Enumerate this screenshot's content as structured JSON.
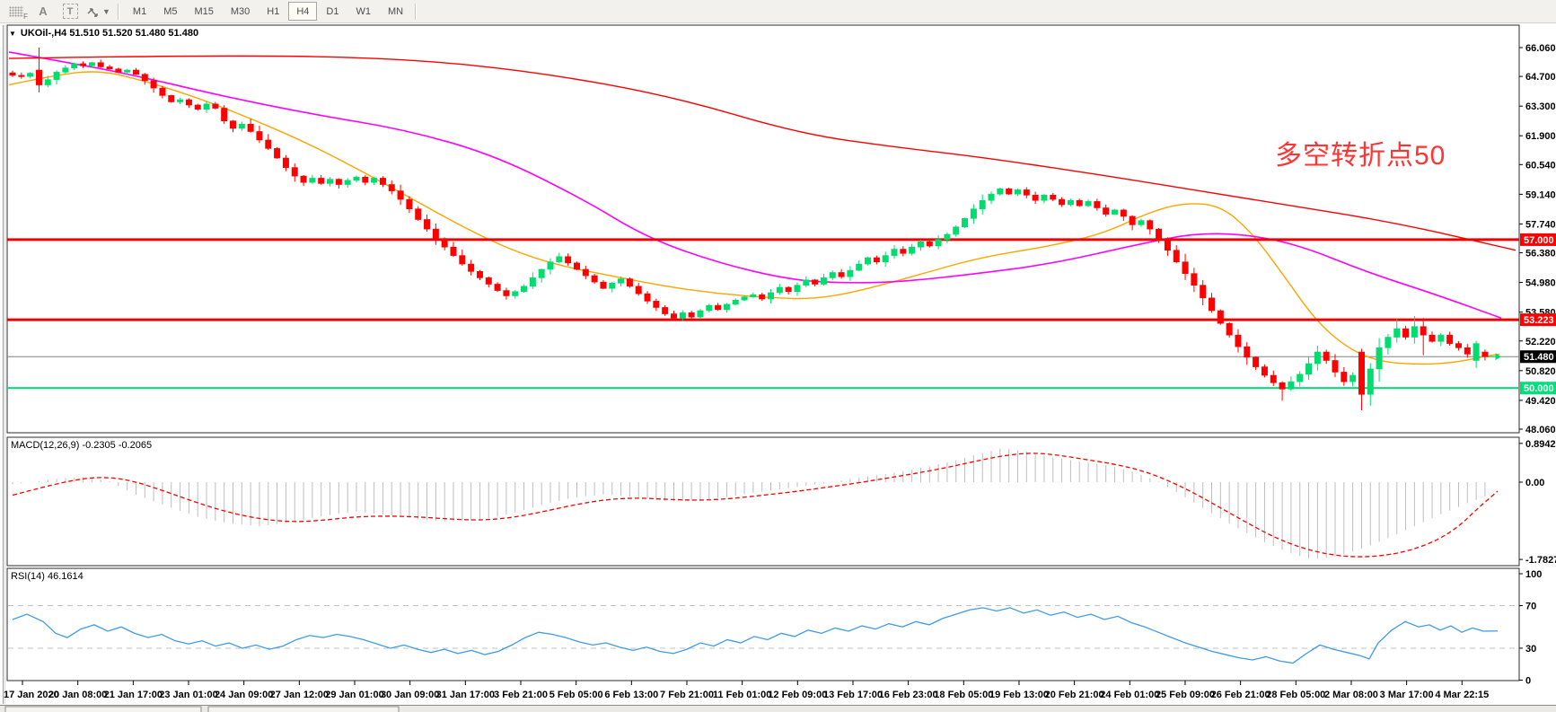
{
  "toolbar": {
    "icon_letters": {
      "f": "F",
      "a": "A",
      "t": "T"
    },
    "dropdown_caret": "▼",
    "timeframes": [
      "M1",
      "M5",
      "M15",
      "M30",
      "H1",
      "H4",
      "D1",
      "W1",
      "MN"
    ],
    "active_timeframe": "H4"
  },
  "chart": {
    "title": "UKOil-,H4  51.510 51.520 51.480 51.480",
    "annotation": "多空转折点50",
    "annotation_color": "#ff3535",
    "price_ticks": [
      66.06,
      64.7,
      63.3,
      61.9,
      60.54,
      59.14,
      57.74,
      56.38,
      54.98,
      53.58,
      52.22,
      50.82,
      49.42,
      48.06
    ],
    "price_badges": [
      {
        "label": "57.000",
        "value": 57.0,
        "bg": "#ff0000",
        "fg": "#ffffff"
      },
      {
        "label": "53.223",
        "value": 53.223,
        "bg": "#ff0000",
        "fg": "#ffffff"
      },
      {
        "label": "51.480",
        "value": 51.48,
        "bg": "#000000",
        "fg": "#ffffff"
      },
      {
        "label": "50.000",
        "value": 50.0,
        "bg": "#00e07a",
        "fg": "#ffffff"
      }
    ],
    "hlines": [
      {
        "value": 57.0,
        "color": "#f20000",
        "width": 3
      },
      {
        "value": 53.223,
        "color": "#f20000",
        "width": 3
      },
      {
        "value": 51.48,
        "color": "#808080",
        "width": 1
      },
      {
        "value": 50.0,
        "color": "#00e07a",
        "width": 2
      }
    ],
    "time_labels": [
      "17 Jan 2020",
      "20 Jan 08:00",
      "21 Jan 17:00",
      "23 Jan 01:00",
      "24 Jan 09:00",
      "27 Jan 12:00",
      "29 Jan 01:00",
      "30 Jan 09:00",
      "31 Jan 17:00",
      "3 Feb 21:00",
      "5 Feb 05:00",
      "6 Feb 13:00",
      "7 Feb 21:00",
      "11 Feb 01:00",
      "12 Feb 09:00",
      "13 Feb 17:00",
      "16 Feb 23:00",
      "18 Feb 05:00",
      "19 Feb 13:00",
      "20 Feb 21:00",
      "24 Feb 01:00",
      "25 Feb 09:00",
      "26 Feb 21:00",
      "28 Feb 05:00",
      "2 Mar 08:00",
      "3 Mar 17:00",
      "4 Mar 22:15"
    ],
    "colors": {
      "bull": "#00dc6e",
      "bear": "#ff0000",
      "ma_fast": "#ffa500",
      "ma_mid": "#ff00ff",
      "ma_slow": "#ff0000",
      "macd_hist": "#bdbdbd",
      "macd_signal": "#ff0000",
      "rsi": "#3e9be9",
      "level_dash": "#c0c0c0",
      "price_line": "#808080"
    }
  },
  "macd": {
    "label": "MACD(12,26,9) -0.2305 -0.2065",
    "axis": [
      {
        "label": "0.8942",
        "value": 0.8942
      },
      {
        "label": "0.00",
        "value": 0
      },
      {
        "label": "-1.7827",
        "value": -1.7827
      }
    ]
  },
  "rsi": {
    "label": "RSI(14) 46.1614",
    "axis": [
      {
        "label": "100",
        "value": 100
      },
      {
        "label": "70",
        "value": 70
      },
      {
        "label": "30",
        "value": 30
      },
      {
        "label": "0",
        "value": 0
      }
    ],
    "dashed_levels": [
      70,
      30
    ]
  },
  "chart_data": {
    "type": "candlestick",
    "symbol": "UKOil-",
    "timeframe": "H4",
    "current_quote": {
      "open": "51.510",
      "high": "51.520",
      "low": "51.480",
      "close": "51.480"
    },
    "ylim": [
      48.06,
      66.06
    ],
    "support_resistance_levels": [
      57.0,
      53.223,
      50.0
    ],
    "current_price": 51.48,
    "closes": [
      64.75,
      64.7,
      64.85,
      64.3,
      64.55,
      64.9,
      65.1,
      65.3,
      65.2,
      65.35,
      65.15,
      65.05,
      64.9,
      65.0,
      64.8,
      64.5,
      64.15,
      63.8,
      63.5,
      63.6,
      63.35,
      63.15,
      63.4,
      63.2,
      62.6,
      62.25,
      62.45,
      62.1,
      61.7,
      61.3,
      60.85,
      60.4,
      60.0,
      59.7,
      59.9,
      59.65,
      59.85,
      59.6,
      59.8,
      59.95,
      59.7,
      59.9,
      59.6,
      59.3,
      58.9,
      58.45,
      57.95,
      57.5,
      57.05,
      56.65,
      56.25,
      55.85,
      55.5,
      55.2,
      54.9,
      54.6,
      54.35,
      54.55,
      54.8,
      55.2,
      55.6,
      55.95,
      56.2,
      55.9,
      55.6,
      55.3,
      55.0,
      54.7,
      54.95,
      55.15,
      54.8,
      54.45,
      54.1,
      53.8,
      53.5,
      53.3,
      53.55,
      53.35,
      53.65,
      53.9,
      53.7,
      53.95,
      54.15,
      54.3,
      54.4,
      54.2,
      54.5,
      54.75,
      54.55,
      54.85,
      55.1,
      54.9,
      55.2,
      55.45,
      55.25,
      55.55,
      55.85,
      56.15,
      55.95,
      56.25,
      56.55,
      56.35,
      56.65,
      56.9,
      56.7,
      57.0,
      57.25,
      57.6,
      58.0,
      58.45,
      58.85,
      59.15,
      59.4,
      59.15,
      59.35,
      59.1,
      58.85,
      59.1,
      58.9,
      58.65,
      58.85,
      58.6,
      58.8,
      58.5,
      58.2,
      58.4,
      58.1,
      57.7,
      57.9,
      57.5,
      57.0,
      56.5,
      55.95,
      55.4,
      54.85,
      54.25,
      53.65,
      53.05,
      52.5,
      51.95,
      51.45,
      51.0,
      50.6,
      50.25,
      49.95,
      50.3,
      50.65,
      51.15,
      51.7,
      51.3,
      50.75,
      50.3,
      50.6,
      49.7,
      50.9,
      51.9,
      52.4,
      52.8,
      52.4,
      52.9,
      52.5,
      52.2,
      52.5,
      52.1,
      51.9,
      51.6,
      52.1,
      51.48
    ],
    "overrides": {
      "3": {
        "o": 65.0,
        "h": 66.06,
        "l": 63.95
      },
      "144": {
        "l": 49.4
      },
      "148": {
        "h": 52.0
      },
      "153": {
        "o": 51.7,
        "h": 51.85,
        "l": 48.95
      },
      "155": {
        "h": 52.35
      },
      "157": {
        "h": 53.3
      },
      "159": {
        "h": 53.4
      },
      "160": {
        "h": 53.3,
        "l": 51.55
      },
      "166": {
        "o": 51.3,
        "l": 50.95
      },
      "167": {
        "o": 51.7,
        "h": 51.82,
        "l": 51.3
      }
    },
    "ma_slow_red": [
      [
        10,
        65.55
      ],
      [
        250,
        65.72
      ],
      [
        450,
        65.55
      ],
      [
        600,
        64.9
      ],
      [
        750,
        63.75
      ],
      [
        890,
        62.0
      ],
      [
        1000,
        61.35
      ],
      [
        1100,
        60.85
      ],
      [
        1250,
        59.9
      ],
      [
        1400,
        58.85
      ],
      [
        1550,
        57.85
      ],
      [
        1688,
        56.5
      ]
    ],
    "ma_mid_magenta": [
      [
        10,
        65.85
      ],
      [
        50,
        65.55
      ],
      [
        140,
        64.85
      ],
      [
        250,
        63.75
      ],
      [
        350,
        62.9
      ],
      [
        450,
        62.2
      ],
      [
        550,
        61.0
      ],
      [
        650,
        58.9
      ],
      [
        720,
        57.1
      ],
      [
        800,
        55.9
      ],
      [
        880,
        55.1
      ],
      [
        940,
        54.95
      ],
      [
        1000,
        55.0
      ],
      [
        1080,
        55.35
      ],
      [
        1170,
        55.85
      ],
      [
        1270,
        56.8
      ],
      [
        1330,
        57.3
      ],
      [
        1390,
        57.25
      ],
      [
        1450,
        56.7
      ],
      [
        1520,
        55.5
      ],
      [
        1600,
        54.4
      ],
      [
        1672,
        53.3
      ]
    ],
    "ma_fast_orange": [
      [
        10,
        64.3
      ],
      [
        60,
        64.75
      ],
      [
        110,
        65.0
      ],
      [
        160,
        64.5
      ],
      [
        220,
        63.7
      ],
      [
        280,
        62.7
      ],
      [
        340,
        61.6
      ],
      [
        400,
        60.3
      ],
      [
        460,
        58.9
      ],
      [
        520,
        57.5
      ],
      [
        570,
        56.5
      ],
      [
        620,
        55.8
      ],
      [
        680,
        55.3
      ],
      [
        740,
        54.8
      ],
      [
        800,
        54.45
      ],
      [
        860,
        54.25
      ],
      [
        905,
        54.2
      ],
      [
        950,
        54.5
      ],
      [
        1020,
        55.3
      ],
      [
        1090,
        56.15
      ],
      [
        1170,
        56.7
      ],
      [
        1230,
        57.3
      ],
      [
        1280,
        58.3
      ],
      [
        1320,
        58.75
      ],
      [
        1360,
        58.6
      ],
      [
        1395,
        57.3
      ],
      [
        1430,
        55.3
      ],
      [
        1465,
        53.2
      ],
      [
        1500,
        51.9
      ],
      [
        1535,
        51.25
      ],
      [
        1580,
        51.1
      ],
      [
        1620,
        51.2
      ],
      [
        1655,
        51.5
      ],
      [
        1670,
        51.6
      ]
    ],
    "macd_histogram": [
      [
        14,
        -0.05
      ],
      [
        55,
        0.06
      ],
      [
        90,
        0.12
      ],
      [
        120,
        0.04
      ],
      [
        150,
        -0.28
      ],
      [
        185,
        -0.55
      ],
      [
        220,
        -0.8
      ],
      [
        255,
        -0.95
      ],
      [
        290,
        -1.02
      ],
      [
        325,
        -0.92
      ],
      [
        360,
        -0.78
      ],
      [
        395,
        -0.68
      ],
      [
        430,
        -0.75
      ],
      [
        465,
        -0.85
      ],
      [
        500,
        -0.92
      ],
      [
        535,
        -0.88
      ],
      [
        570,
        -0.72
      ],
      [
        605,
        -0.52
      ],
      [
        640,
        -0.35
      ],
      [
        675,
        -0.28
      ],
      [
        710,
        -0.35
      ],
      [
        745,
        -0.45
      ],
      [
        780,
        -0.42
      ],
      [
        815,
        -0.32
      ],
      [
        850,
        -0.22
      ],
      [
        885,
        -0.12
      ],
      [
        920,
        -0.02
      ],
      [
        955,
        0.1
      ],
      [
        990,
        0.2
      ],
      [
        1025,
        0.32
      ],
      [
        1060,
        0.48
      ],
      [
        1090,
        0.65
      ],
      [
        1115,
        0.78
      ],
      [
        1140,
        0.72
      ],
      [
        1170,
        0.58
      ],
      [
        1200,
        0.48
      ],
      [
        1230,
        0.4
      ],
      [
        1260,
        0.25
      ],
      [
        1290,
        0.02
      ],
      [
        1320,
        -0.35
      ],
      [
        1350,
        -0.72
      ],
      [
        1380,
        -1.08
      ],
      [
        1410,
        -1.4
      ],
      [
        1440,
        -1.66
      ],
      [
        1462,
        -1.78
      ],
      [
        1488,
        -1.72
      ],
      [
        1515,
        -1.55
      ],
      [
        1545,
        -1.3
      ],
      [
        1575,
        -1.02
      ],
      [
        1605,
        -0.74
      ],
      [
        1635,
        -0.48
      ],
      [
        1655,
        -0.32
      ],
      [
        1668,
        -0.23
      ]
    ],
    "macd_signal": [
      [
        14,
        -0.3
      ],
      [
        50,
        -0.1
      ],
      [
        90,
        0.08
      ],
      [
        120,
        0.12
      ],
      [
        150,
        0.02
      ],
      [
        185,
        -0.22
      ],
      [
        220,
        -0.48
      ],
      [
        255,
        -0.7
      ],
      [
        290,
        -0.85
      ],
      [
        325,
        -0.92
      ],
      [
        360,
        -0.88
      ],
      [
        395,
        -0.8
      ],
      [
        430,
        -0.78
      ],
      [
        465,
        -0.8
      ],
      [
        500,
        -0.85
      ],
      [
        535,
        -0.88
      ],
      [
        570,
        -0.82
      ],
      [
        605,
        -0.68
      ],
      [
        640,
        -0.52
      ],
      [
        675,
        -0.4
      ],
      [
        710,
        -0.36
      ],
      [
        745,
        -0.4
      ],
      [
        780,
        -0.42
      ],
      [
        815,
        -0.38
      ],
      [
        850,
        -0.3
      ],
      [
        885,
        -0.22
      ],
      [
        920,
        -0.12
      ],
      [
        955,
        -0.02
      ],
      [
        990,
        0.1
      ],
      [
        1025,
        0.22
      ],
      [
        1060,
        0.36
      ],
      [
        1090,
        0.5
      ],
      [
        1120,
        0.62
      ],
      [
        1150,
        0.68
      ],
      [
        1180,
        0.62
      ],
      [
        1210,
        0.52
      ],
      [
        1240,
        0.42
      ],
      [
        1270,
        0.28
      ],
      [
        1300,
        0.05
      ],
      [
        1330,
        -0.25
      ],
      [
        1360,
        -0.6
      ],
      [
        1390,
        -0.95
      ],
      [
        1420,
        -1.28
      ],
      [
        1450,
        -1.52
      ],
      [
        1480,
        -1.67
      ],
      [
        1510,
        -1.73
      ],
      [
        1540,
        -1.7
      ],
      [
        1570,
        -1.58
      ],
      [
        1600,
        -1.35
      ],
      [
        1625,
        -1.02
      ],
      [
        1645,
        -0.62
      ],
      [
        1668,
        -0.21
      ]
    ],
    "rsi_line": [
      [
        14,
        57
      ],
      [
        30,
        62
      ],
      [
        48,
        55
      ],
      [
        62,
        44
      ],
      [
        75,
        40
      ],
      [
        90,
        48
      ],
      [
        105,
        52
      ],
      [
        120,
        46
      ],
      [
        135,
        50
      ],
      [
        150,
        44
      ],
      [
        165,
        40
      ],
      [
        180,
        43
      ],
      [
        195,
        37
      ],
      [
        210,
        34
      ],
      [
        225,
        37
      ],
      [
        240,
        32
      ],
      [
        255,
        35
      ],
      [
        270,
        30
      ],
      [
        285,
        33
      ],
      [
        300,
        29
      ],
      [
        315,
        32
      ],
      [
        330,
        38
      ],
      [
        345,
        42
      ],
      [
        360,
        40
      ],
      [
        375,
        43
      ],
      [
        390,
        41
      ],
      [
        405,
        38
      ],
      [
        420,
        34
      ],
      [
        435,
        30
      ],
      [
        450,
        33
      ],
      [
        465,
        29
      ],
      [
        480,
        26
      ],
      [
        495,
        29
      ],
      [
        510,
        25
      ],
      [
        525,
        28
      ],
      [
        540,
        24
      ],
      [
        555,
        27
      ],
      [
        570,
        33
      ],
      [
        585,
        40
      ],
      [
        600,
        45
      ],
      [
        615,
        43
      ],
      [
        630,
        40
      ],
      [
        645,
        36
      ],
      [
        660,
        33
      ],
      [
        675,
        35
      ],
      [
        690,
        31
      ],
      [
        705,
        28
      ],
      [
        720,
        31
      ],
      [
        735,
        27
      ],
      [
        750,
        25
      ],
      [
        765,
        29
      ],
      [
        780,
        35
      ],
      [
        795,
        32
      ],
      [
        810,
        38
      ],
      [
        825,
        35
      ],
      [
        840,
        41
      ],
      [
        855,
        38
      ],
      [
        870,
        44
      ],
      [
        885,
        41
      ],
      [
        900,
        47
      ],
      [
        915,
        44
      ],
      [
        930,
        49
      ],
      [
        945,
        46
      ],
      [
        960,
        51
      ],
      [
        975,
        48
      ],
      [
        990,
        53
      ],
      [
        1005,
        50
      ],
      [
        1020,
        55
      ],
      [
        1035,
        52
      ],
      [
        1050,
        58
      ],
      [
        1065,
        62
      ],
      [
        1080,
        66
      ],
      [
        1095,
        68
      ],
      [
        1110,
        65
      ],
      [
        1125,
        68
      ],
      [
        1140,
        63
      ],
      [
        1155,
        66
      ],
      [
        1170,
        61
      ],
      [
        1185,
        64
      ],
      [
        1200,
        59
      ],
      [
        1215,
        62
      ],
      [
        1230,
        57
      ],
      [
        1245,
        60
      ],
      [
        1260,
        54
      ],
      [
        1275,
        50
      ],
      [
        1290,
        45
      ],
      [
        1305,
        40
      ],
      [
        1320,
        35
      ],
      [
        1335,
        31
      ],
      [
        1350,
        27
      ],
      [
        1365,
        24
      ],
      [
        1380,
        21
      ],
      [
        1395,
        19
      ],
      [
        1410,
        22
      ],
      [
        1425,
        18
      ],
      [
        1440,
        16
      ],
      [
        1455,
        25
      ],
      [
        1470,
        33
      ],
      [
        1485,
        29
      ],
      [
        1500,
        26
      ],
      [
        1515,
        23
      ],
      [
        1525,
        20
      ],
      [
        1535,
        35
      ],
      [
        1550,
        47
      ],
      [
        1565,
        55
      ],
      [
        1580,
        50
      ],
      [
        1592,
        52
      ],
      [
        1604,
        47
      ],
      [
        1616,
        51
      ],
      [
        1628,
        45
      ],
      [
        1640,
        49
      ],
      [
        1652,
        46
      ],
      [
        1668,
        46.2
      ]
    ]
  }
}
